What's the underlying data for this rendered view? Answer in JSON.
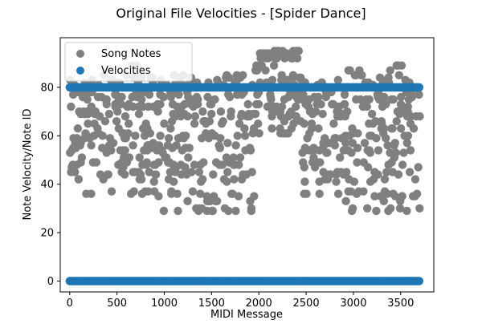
{
  "chart_data": {
    "type": "scatter",
    "title": "Original File Velocities - [Spider Dance]",
    "xlabel": "MIDI Message",
    "ylabel": "Note Velocity/Note ID",
    "xlim": [
      -100,
      3850
    ],
    "ylim": [
      -4.5,
      100.5
    ],
    "xticks": [
      0,
      500,
      1000,
      1500,
      2000,
      2500,
      3000,
      3500
    ],
    "yticks": [
      0,
      20,
      40,
      60,
      80
    ],
    "grid": false,
    "legend_position": "top-left",
    "series": [
      {
        "name": "Song Notes",
        "color": "#808080",
        "x_range": [
          0,
          3700
        ],
        "y_range": [
          29,
          95
        ],
        "note_levels": [
          29,
          30,
          33,
          35,
          36,
          37,
          41,
          42,
          44,
          45,
          47,
          48,
          49,
          51,
          53,
          54,
          55,
          56,
          57,
          59,
          60,
          61,
          63,
          65,
          66,
          68,
          69,
          70,
          72,
          73,
          75,
          76,
          77,
          78,
          80,
          81,
          82,
          83,
          84,
          85,
          87,
          89,
          92,
          93,
          94,
          95
        ]
      },
      {
        "name": "Velocities",
        "color": "#1f77b4",
        "x_range": [
          0,
          3700
        ],
        "values": [
          0,
          80
        ]
      }
    ]
  }
}
